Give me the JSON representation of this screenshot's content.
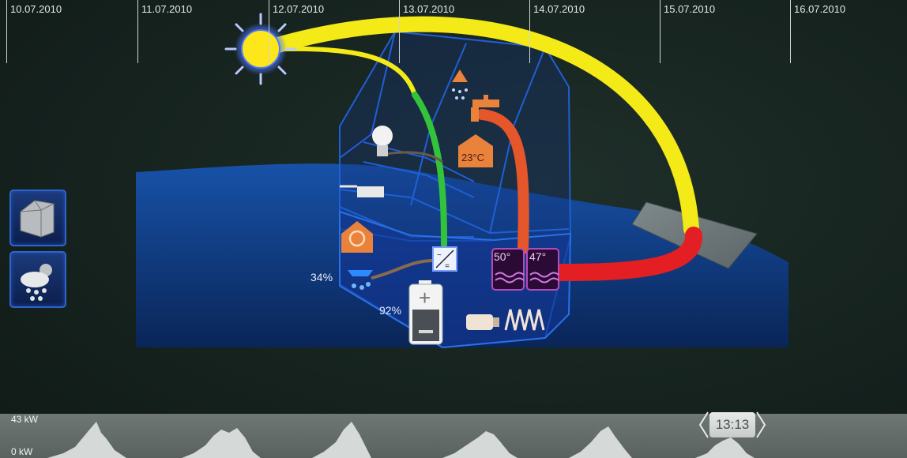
{
  "house": {
    "room_temp": "23°C",
    "water_pct": "34%",
    "battery_pct": "92%",
    "tank1_temp": "50°",
    "tank2_temp": "47°"
  },
  "timeline": {
    "dates": [
      "10.07.2010",
      "11.07.2010",
      "12.07.2010",
      "13.07.2010",
      "14.07.2010",
      "15.07.2010",
      "16.07.2010"
    ],
    "axis_max": "43 kW",
    "axis_min": "0 kW",
    "current_time": "13:13"
  },
  "colors": {
    "solar_flow": "#f3ea18",
    "electric_flow": "#33c33a",
    "heat_flow_orange": "#e5562a",
    "heat_flow_red": "#e41f24",
    "house_outline": "#1f5fd6",
    "hill": "#0f3f86",
    "accent_tank": "#8b1f7c"
  },
  "icons": [
    "sun-icon",
    "house-3d-icon",
    "weather-cloud-sun-rain-icon",
    "light-bulb-icon",
    "cooking-pot-icon",
    "heating-cycle-icon",
    "sprinkler-icon",
    "shower-icon",
    "faucet-icon",
    "inverter-icon",
    "battery-icon",
    "heat-pump-icon",
    "heating-coil-icon",
    "solar-panel-icon"
  ]
}
